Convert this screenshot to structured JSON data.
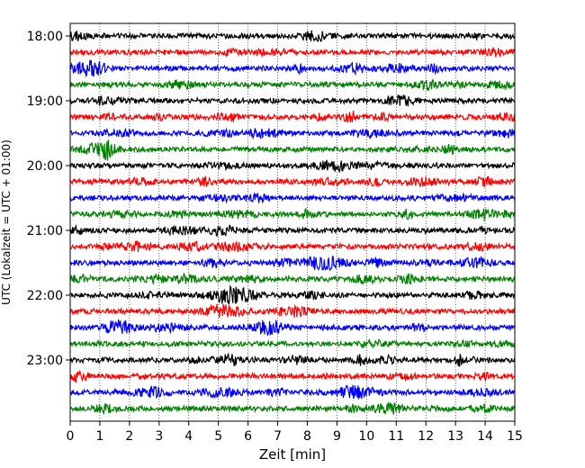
{
  "chart_data": {
    "type": "line",
    "title": "",
    "xlabel": "Zeit  [min]",
    "ylabel": "UTC (Lokalzeit = UTC + 01:00)",
    "xlim": [
      0,
      15
    ],
    "xticks": [
      0,
      1,
      2,
      3,
      4,
      5,
      6,
      7,
      8,
      9,
      10,
      11,
      12,
      13,
      14,
      15
    ],
    "ytick_labels": [
      "18:00",
      "19:00",
      "20:00",
      "21:00",
      "22:00",
      "23:00"
    ],
    "grid": "vertical dotted lines at each minute",
    "color_cycle": [
      "#000000",
      "#ff0000",
      "#0000ff",
      "#008000"
    ],
    "traces": [
      {
        "start": "18:00",
        "color": "#000000"
      },
      {
        "start": "18:15",
        "color": "#ff0000"
      },
      {
        "start": "18:30",
        "color": "#0000ff"
      },
      {
        "start": "18:45",
        "color": "#008000"
      },
      {
        "start": "19:00",
        "color": "#000000"
      },
      {
        "start": "19:15",
        "color": "#ff0000"
      },
      {
        "start": "19:30",
        "color": "#0000ff"
      },
      {
        "start": "19:45",
        "color": "#008000"
      },
      {
        "start": "20:00",
        "color": "#000000"
      },
      {
        "start": "20:15",
        "color": "#ff0000"
      },
      {
        "start": "20:30",
        "color": "#0000ff"
      },
      {
        "start": "20:45",
        "color": "#008000"
      },
      {
        "start": "21:00",
        "color": "#000000"
      },
      {
        "start": "21:15",
        "color": "#ff0000"
      },
      {
        "start": "21:30",
        "color": "#0000ff"
      },
      {
        "start": "21:45",
        "color": "#008000"
      },
      {
        "start": "22:00",
        "color": "#000000"
      },
      {
        "start": "22:15",
        "color": "#ff0000"
      },
      {
        "start": "22:30",
        "color": "#0000ff"
      },
      {
        "start": "22:45",
        "color": "#008000"
      },
      {
        "start": "23:00",
        "color": "#000000"
      },
      {
        "start": "23:15",
        "color": "#ff0000"
      },
      {
        "start": "23:30",
        "color": "#0000ff"
      },
      {
        "start": "23:45",
        "color": "#008000"
      }
    ]
  }
}
